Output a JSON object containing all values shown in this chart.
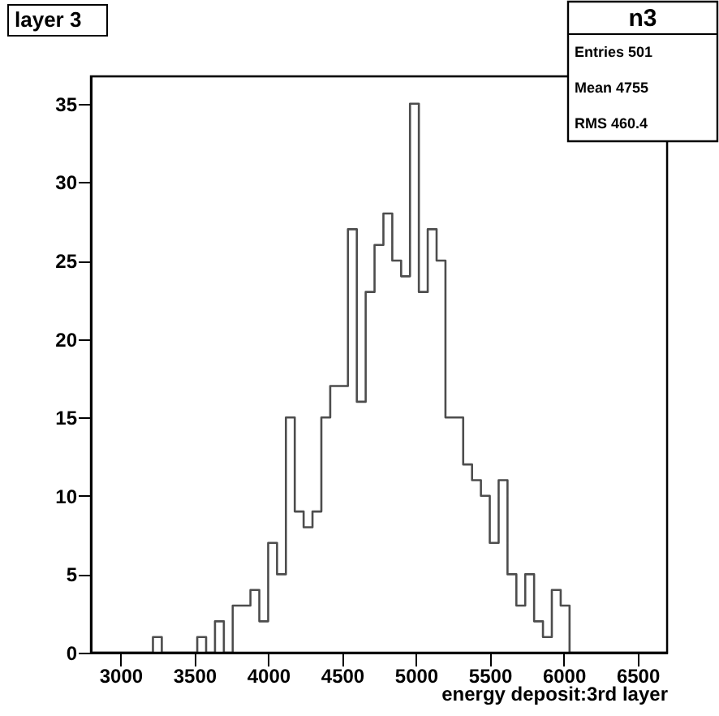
{
  "chart_data": {
    "type": "histogram",
    "title": "layer 3",
    "xlabel": "energy deposit:3rd layer",
    "bins": [
      2800,
      2860,
      2920,
      2980,
      3040,
      3100,
      3160,
      3220,
      3280,
      3340,
      3400,
      3460,
      3520,
      3580,
      3640,
      3700,
      3760,
      3820,
      3880,
      3940,
      4000,
      4060,
      4120,
      4180,
      4240,
      4300,
      4360,
      4420,
      4480,
      4540,
      4600,
      4660,
      4720,
      4780,
      4840,
      4900,
      4960,
      5020,
      5080,
      5140,
      5200,
      5260,
      5320,
      5380,
      5440,
      5500,
      5560,
      5620,
      5680,
      5740,
      5800,
      5860,
      5920,
      5980,
      6040,
      6100,
      6160,
      6220,
      6280,
      6340,
      6400,
      6460,
      6520,
      6580,
      6640,
      6700
    ],
    "values": [
      0,
      0,
      0,
      0,
      0,
      0,
      0,
      1,
      0,
      0,
      0,
      0,
      1,
      0,
      2,
      0,
      3,
      3,
      4,
      2,
      7,
      5,
      15,
      9,
      8,
      9,
      15,
      17,
      17,
      27,
      16,
      23,
      26,
      28,
      25,
      24,
      35,
      23,
      27,
      25,
      15,
      15,
      12,
      11,
      10,
      7,
      11,
      5,
      3,
      5,
      2,
      1,
      4,
      3,
      0,
      0,
      0,
      0,
      0,
      0,
      0,
      0,
      0,
      0,
      0
    ],
    "color": "#4d4d4d",
    "xlim": [
      2800,
      6700
    ],
    "xticks": [
      3000,
      3500,
      4000,
      4500,
      5000,
      5500,
      6000,
      6500
    ],
    "ylim": [
      0,
      36.75
    ],
    "yticks": [
      0,
      5,
      10,
      15,
      20,
      25,
      30,
      35
    ],
    "annotations": [
      "n3",
      "Entries 501",
      "Mean 4755",
      "RMS 460.4"
    ],
    "grid": false
  }
}
